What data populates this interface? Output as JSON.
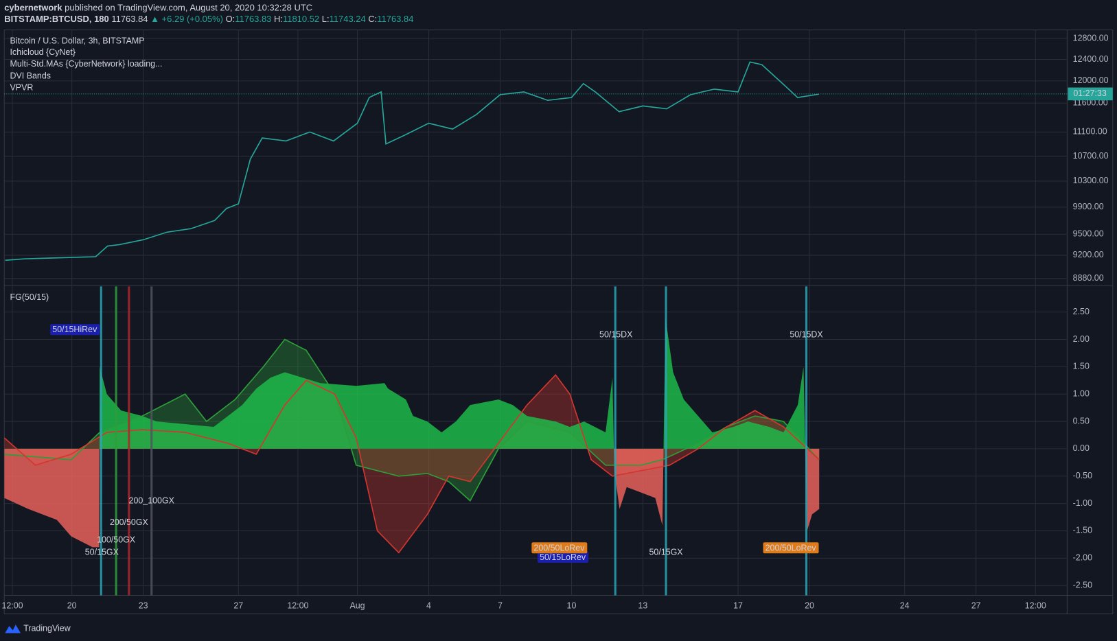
{
  "header": {
    "author": "cybernetwork",
    "published": "published on TradingView.com, August 20, 2020 10:32:28 UTC",
    "symbol": "BITSTAMP:BTCUSD, 180",
    "last": "11763.84",
    "change": "▲ +6.29 (+0.05%)",
    "open_label": "O:",
    "open": "11763.83",
    "high_label": "H:",
    "high": "11810.52",
    "low_label": "L:",
    "low": "11743.24",
    "close_label": "C:",
    "close": "11763.84"
  },
  "chart_data": [
    {
      "type": "line",
      "title": "Bitcoin / U.S. Dollar, 3h, BITSTAMP",
      "indicators": [
        "Ichicloud {CyNet}",
        "Multi-Std.MAs {CyberNetwork} loading...",
        "DVI Bands",
        "VPVR"
      ],
      "x": [
        -2.8,
        -2,
        -1,
        0,
        1,
        1.5,
        2,
        3,
        4,
        5,
        6,
        6.5,
        7,
        7.5,
        8,
        9,
        10,
        11,
        12,
        12.5,
        13,
        13.2,
        14,
        15,
        16,
        17,
        18,
        19,
        20,
        21,
        21.5,
        22,
        23,
        24,
        25,
        26,
        27,
        28,
        28.5,
        29,
        30,
        30.5,
        31.4
      ],
      "series": [
        {
          "color": "#26a69a",
          "values": [
            9130,
            9150,
            9160,
            9170,
            9180,
            9330,
            9350,
            9420,
            9530,
            9580,
            9700,
            9880,
            9950,
            10650,
            11000,
            10950,
            11100,
            10950,
            11250,
            11700,
            11800,
            10900,
            11050,
            11250,
            11150,
            11400,
            11750,
            11800,
            11650,
            11700,
            11950,
            11800,
            11450,
            11550,
            11500,
            11750,
            11850,
            11800,
            12350,
            12300,
            11900,
            11700,
            11760
          ]
        }
      ],
      "last_price": 11763.84,
      "last_color": "#26a69a",
      "countdown": "01:27:33",
      "log_scale": true,
      "ylim": [
        8794,
        12968
      ],
      "yticks": [
        {
          "value": 12800,
          "label": "12800.00"
        },
        {
          "value": 12400,
          "label": "12400.00"
        },
        {
          "value": 12000,
          "label": "12000.00"
        },
        {
          "value": 11600,
          "label": "11600.00"
        },
        {
          "value": 11100,
          "label": "11100.00"
        },
        {
          "value": 10700,
          "label": "10700.00"
        },
        {
          "value": 10300,
          "label": "10300.00"
        },
        {
          "value": 9900,
          "label": "9900.00"
        },
        {
          "value": 9500,
          "label": "9500.00"
        },
        {
          "value": 9200,
          "label": "9200.00"
        },
        {
          "value": 8880,
          "label": "8880.00"
        }
      ],
      "xlim": [
        -2.84,
        41.83
      ],
      "xticks": [
        {
          "value": -2.5,
          "label": "12:00"
        },
        {
          "value": 0,
          "label": "20"
        },
        {
          "value": 3,
          "label": "23"
        },
        {
          "value": 7,
          "label": "27"
        },
        {
          "value": 9.5,
          "label": "12:00"
        },
        {
          "value": 12,
          "label": "Aug"
        },
        {
          "value": 15,
          "label": "4"
        },
        {
          "value": 18,
          "label": "7"
        },
        {
          "value": 21,
          "label": "10"
        },
        {
          "value": 24,
          "label": "13"
        },
        {
          "value": 28,
          "label": "17"
        },
        {
          "value": 31,
          "label": "20"
        },
        {
          "value": 35,
          "label": "24"
        },
        {
          "value": 38,
          "label": "27"
        },
        {
          "value": 40.5,
          "label": "12:00"
        }
      ],
      "grid": true
    },
    {
      "type": "oscillator",
      "title": "FG(50/15)",
      "x": [
        -2.84,
        -1.83,
        -0.63,
        -0.03,
        0.87,
        1.15,
        1.17,
        1.47,
        2.07,
        2.96,
        3.56,
        4.76,
        5.96,
        6.56,
        7.16,
        7.75,
        8.35,
        8.95,
        10.45,
        11.95,
        13.14,
        13.29,
        14.04,
        14.34,
        14.94,
        15.54,
        16.14,
        16.74,
        17.93,
        18.53,
        19.13,
        20.33,
        20.93,
        21.53,
        22.43,
        22.72,
        22.8,
        23.02,
        23.32,
        23.92,
        24.52,
        24.82,
        24.95,
        25.27,
        25.72,
        26.32,
        26.92,
        27.81,
        28.41,
        29.31,
        29.91,
        30.51,
        30.75,
        30.9,
        31.11,
        31.41
      ],
      "values": [
        -0.9,
        -1.1,
        -1.3,
        -1.6,
        -1.8,
        -1.8,
        1.5,
        1.0,
        0.7,
        0.6,
        0.5,
        0.45,
        0.4,
        0.6,
        0.8,
        1.1,
        1.3,
        1.4,
        1.2,
        1.15,
        1.2,
        1.1,
        0.9,
        0.6,
        0.5,
        0.3,
        0.5,
        0.8,
        0.9,
        0.8,
        0.6,
        0.5,
        0.4,
        0.5,
        0.3,
        1.3,
        -0.4,
        -1.1,
        -0.7,
        -0.8,
        -0.9,
        -1.4,
        2.4,
        1.4,
        0.9,
        0.6,
        0.3,
        0.4,
        0.5,
        0.4,
        0.3,
        0.8,
        1.5,
        -1.5,
        -1.2,
        -1.1
      ],
      "colors": {
        "positive": "#1fb84a",
        "negative": "#e8605a"
      },
      "lines": [
        {
          "color": "#2e9e3a",
          "x": [
            -2.84,
            -0.03,
            1.17,
            2.96,
            4.76,
            5.66,
            6.86,
            8.05,
            8.95,
            9.85,
            11.05,
            11.95,
            12.84,
            13.74,
            14.94,
            15.84,
            16.74,
            17.93,
            19.13,
            20.93,
            22.43,
            23.92,
            24.82,
            26.32,
            27.51,
            28.71,
            29.91,
            31.41
          ],
          "values": [
            -0.1,
            -0.2,
            0.3,
            0.6,
            1.0,
            0.5,
            0.9,
            1.5,
            2.0,
            1.8,
            1.0,
            -0.3,
            -0.4,
            -0.5,
            -0.45,
            -0.6,
            -0.95,
            0.0,
            0.5,
            0.3,
            -0.3,
            -0.3,
            -0.2,
            0.1,
            0.4,
            0.6,
            0.5,
            -0.2
          ]
        },
        {
          "color": "#d3362f",
          "x": [
            -2.84,
            -1.53,
            -0.03,
            1.47,
            2.96,
            4.76,
            6.56,
            7.75,
            8.95,
            9.85,
            11.05,
            11.95,
            12.84,
            13.74,
            14.94,
            15.84,
            16.74,
            17.93,
            19.13,
            20.33,
            20.93,
            21.83,
            22.72,
            23.92,
            25.12,
            26.32,
            27.51,
            28.71,
            29.91,
            31.41
          ],
          "values": [
            0.2,
            -0.3,
            -0.1,
            0.3,
            0.35,
            0.3,
            0.1,
            -0.1,
            0.8,
            1.25,
            1.0,
            0.2,
            -1.5,
            -1.9,
            -1.2,
            -0.5,
            -0.6,
            0.1,
            0.8,
            1.35,
            1.0,
            -0.2,
            -0.5,
            -0.4,
            -0.3,
            0.0,
            0.4,
            0.7,
            0.4,
            -0.2
          ]
        }
      ],
      "signals": [
        {
          "x": 1.23,
          "color": "#2aa5b5"
        },
        {
          "x": 1.86,
          "color": "#2e9e3a"
        },
        {
          "x": 2.4,
          "color": "#b0262b"
        },
        {
          "x": 3.35,
          "color": "#50535e"
        },
        {
          "x": 22.84,
          "color": "#2aa5b5"
        },
        {
          "x": 24.97,
          "color": "#2aa5b5"
        },
        {
          "x": 30.87,
          "color": "#2aa5b5"
        }
      ],
      "annotations": [
        {
          "text": "50/15HiRev",
          "x": 0.12,
          "y": 2.17,
          "color": "#9fd0ff",
          "box": "#1a1fb0"
        },
        {
          "text": "50/15DX",
          "x": 22.87,
          "y": 2.08,
          "color": "#b8661b"
        },
        {
          "text": "50/15DX",
          "x": 30.87,
          "y": 2.08,
          "color": "#b8661b"
        },
        {
          "text": "200_100GX",
          "x": 3.35,
          "y": -0.96,
          "color": "#2ea03a"
        },
        {
          "text": "200/50GX",
          "x": 2.4,
          "y": -1.35,
          "color": "#2ea03a"
        },
        {
          "text": "100/50GX",
          "x": 1.86,
          "y": -1.67,
          "color": "#2ea03a"
        },
        {
          "text": "50/15GX",
          "x": 1.26,
          "y": -1.9,
          "color": "#2ea03a"
        },
        {
          "text": "50/15LoRev",
          "x": 20.63,
          "y": -1.99,
          "color": "#9fd0ff",
          "box": "#1a1fb0"
        },
        {
          "text": "200/50LoRev",
          "x": 20.48,
          "y": -1.82,
          "color": "#7a2a10",
          "box": "#e07b1a"
        },
        {
          "text": "50/15GX",
          "x": 24.97,
          "y": -1.9,
          "color": "#2ea03a"
        },
        {
          "text": "200/50LoRev",
          "x": 30.21,
          "y": -1.82,
          "color": "#7a2a10",
          "box": "#e07b1a"
        }
      ],
      "ylim": [
        -2.68,
        2.97
      ],
      "yticks": [
        {
          "value": 2.5,
          "label": "2.50"
        },
        {
          "value": 2,
          "label": "2.00"
        },
        {
          "value": 1.5,
          "label": "1.50"
        },
        {
          "value": 1,
          "label": "1.00"
        },
        {
          "value": 0.5,
          "label": "0.50"
        },
        {
          "value": 0,
          "label": "0.00"
        },
        {
          "value": -0.5,
          "label": "-0.50"
        },
        {
          "value": -1,
          "label": "-1.00"
        },
        {
          "value": -1.5,
          "label": "-1.50"
        },
        {
          "value": -2,
          "label": "-2.00"
        },
        {
          "value": -2.5,
          "label": "-2.50"
        }
      ],
      "xlim": [
        -2.84,
        41.83
      ],
      "grid": true
    }
  ],
  "footer": {
    "brand": "TradingView"
  }
}
